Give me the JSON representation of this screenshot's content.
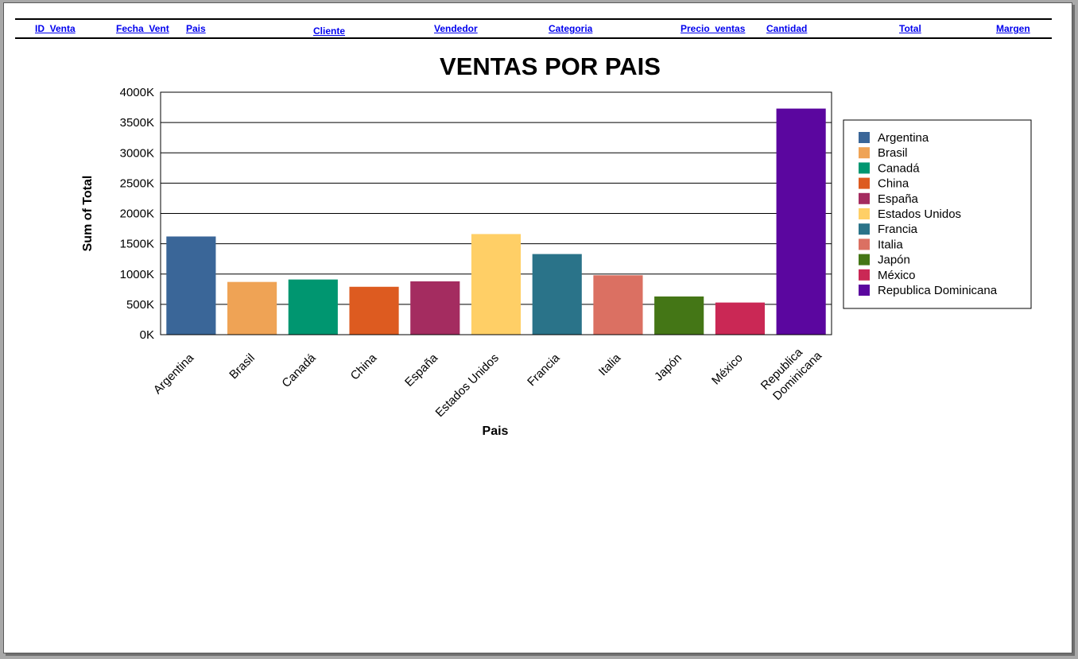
{
  "header": {
    "columns": [
      {
        "label": "ID  Venta"
      },
      {
        "label": "Fecha  Vent"
      },
      {
        "label": "Pais"
      },
      {
        "label": "Cliente"
      },
      {
        "label": "Vendedor"
      },
      {
        "label": "Categoria"
      },
      {
        "label": "Precio  ventas"
      },
      {
        "label": "Cantidad"
      },
      {
        "label": "Total"
      },
      {
        "label": "Margen"
      }
    ]
  },
  "chart_data": {
    "type": "bar",
    "title": "VENTAS POR PAIS",
    "xlabel": "Pais",
    "ylabel": "Sum of Total",
    "ylim": [
      0,
      4000000
    ],
    "yticks": [
      0,
      500000,
      1000000,
      1500000,
      2000000,
      2500000,
      3000000,
      3500000,
      4000000
    ],
    "ytick_labels": [
      "0K",
      "500K",
      "1000K",
      "1500K",
      "2000K",
      "2500K",
      "3000K",
      "3500K",
      "4000K"
    ],
    "grid": true,
    "legend": "right",
    "categories": [
      "Argentina",
      "Brasil",
      "Canadá",
      "China",
      "España",
      "Estados Unidos",
      "Francia",
      "Italia",
      "Japón",
      "México",
      "Republica Dominicana"
    ],
    "values": [
      1620000,
      870000,
      910000,
      790000,
      880000,
      1660000,
      1330000,
      980000,
      630000,
      530000,
      3730000
    ],
    "colors": [
      "#3a6698",
      "#efa355",
      "#009670",
      "#dd5b20",
      "#a42c60",
      "#ffcf66",
      "#2a7389",
      "#db7062",
      "#447616",
      "#ca2855",
      "#5b069f"
    ]
  }
}
